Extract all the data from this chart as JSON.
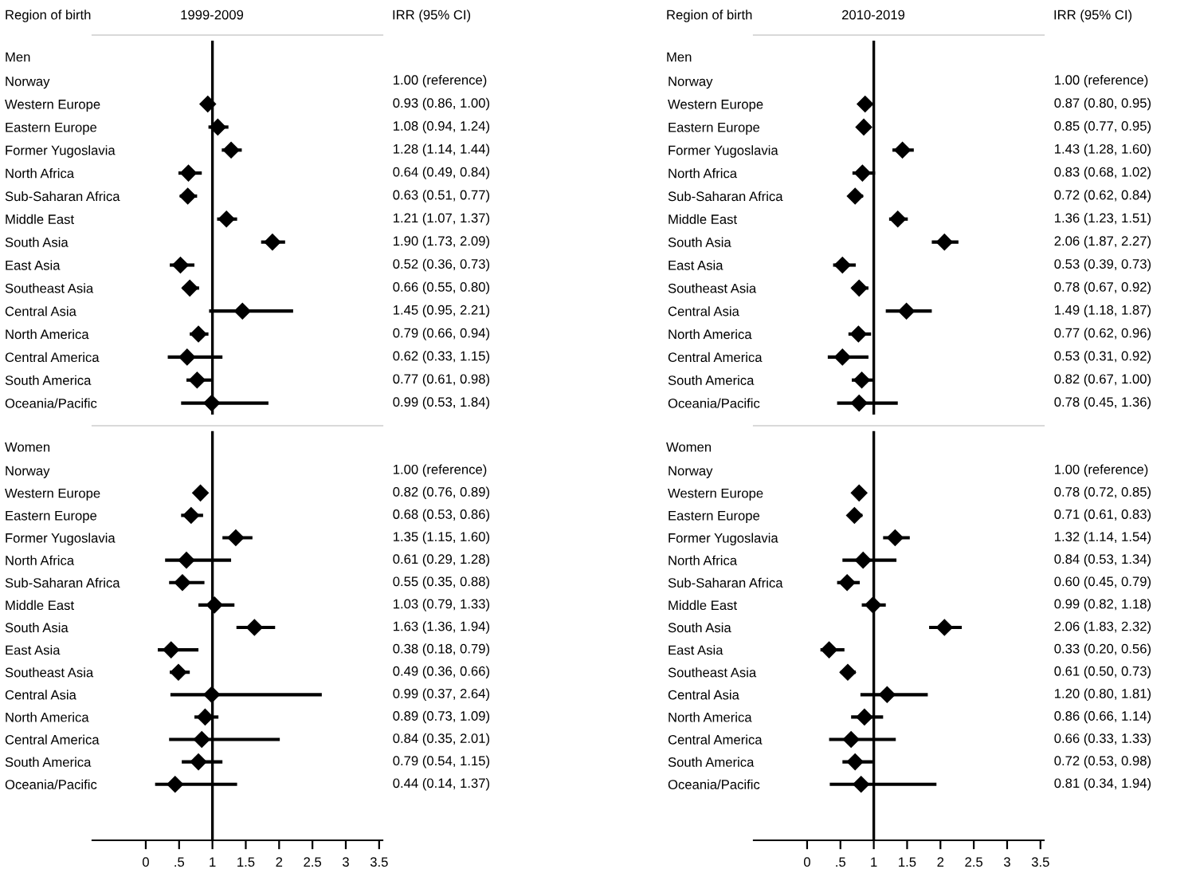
{
  "chart_data": [
    {
      "type": "scatter",
      "orientation": "horizontal",
      "title": "1999-2009",
      "ylabel": "Region of birth",
      "subtitle": "Men",
      "annotations": [
        "IRR (95% CI)"
      ],
      "marker": "diamond",
      "grid": false,
      "tick_labels": "y",
      "xlim": [
        -0.8,
        3.55
      ],
      "categories": [
        "Norway",
        "Western Europe",
        "Eastern Europe",
        "Former Yugoslavia",
        "North Africa",
        "Sub-Saharan Africa",
        "Middle East",
        "South Asia",
        "East Asia",
        "Southeast Asia",
        "Central Asia",
        "North America",
        "Central America",
        "South America",
        "Oceania/Pacific"
      ],
      "series": [
        {
          "color": "#000000",
          "values": [
            null,
            0.93,
            1.08,
            1.28,
            0.64,
            0.63,
            1.21,
            1.9,
            0.52,
            0.66,
            1.45,
            0.79,
            0.62,
            0.77,
            0.99
          ],
          "errors": [
            null,
            [
              0.86,
              1.0
            ],
            [
              0.94,
              1.24
            ],
            [
              1.14,
              1.44
            ],
            [
              0.49,
              0.84
            ],
            [
              0.51,
              0.77
            ],
            [
              1.07,
              1.37
            ],
            [
              1.73,
              2.09
            ],
            [
              0.36,
              0.73
            ],
            [
              0.55,
              0.8
            ],
            [
              0.95,
              2.21
            ],
            [
              0.66,
              0.94
            ],
            [
              0.33,
              1.15
            ],
            [
              0.61,
              0.98
            ],
            [
              0.53,
              1.84
            ]
          ],
          "value_labels": [
            "1.00 (reference)",
            "0.93 (0.86, 1.00)",
            "1.08 (0.94, 1.24)",
            "1.28 (1.14, 1.44)",
            "0.64 (0.49, 0.84)",
            "0.63 (0.51, 0.77)",
            "1.21 (1.07, 1.37)",
            "1.90 (1.73, 2.09)",
            "0.52 (0.36, 0.73)",
            "0.66 (0.55, 0.80)",
            "1.45 (0.95, 2.21)",
            "0.79 (0.66, 0.94)",
            "0.62 (0.33, 1.15)",
            "0.77 (0.61, 0.98)",
            "0.99 (0.53, 1.84)"
          ]
        }
      ],
      "ref_lines": [
        {
          "axis": "x",
          "value": 1,
          "color": "#000000"
        }
      ]
    },
    {
      "type": "scatter",
      "orientation": "horizontal",
      "title": "2010-2019",
      "ylabel": "Region of birth",
      "subtitle": "Men",
      "annotations": [
        "IRR (95% CI)"
      ],
      "marker": "diamond",
      "grid": false,
      "tick_labels": "y",
      "xlim": [
        -0.8,
        3.55
      ],
      "categories": [
        "Norway",
        "Western Europe",
        "Eastern Europe",
        "Former Yugoslavia",
        "North Africa",
        "Sub-Saharan Africa",
        "Middle East",
        "South Asia",
        "East Asia",
        "Southeast Asia",
        "Central Asia",
        "North America",
        "Central America",
        "South America",
        "Oceania/Pacific"
      ],
      "series": [
        {
          "color": "#000000",
          "values": [
            null,
            0.87,
            0.85,
            1.43,
            0.83,
            0.72,
            1.36,
            2.06,
            0.53,
            0.78,
            1.49,
            0.77,
            0.53,
            0.82,
            0.78
          ],
          "errors": [
            null,
            [
              0.8,
              0.95
            ],
            [
              0.77,
              0.95
            ],
            [
              1.28,
              1.6
            ],
            [
              0.68,
              1.02
            ],
            [
              0.62,
              0.84
            ],
            [
              1.23,
              1.51
            ],
            [
              1.87,
              2.27
            ],
            [
              0.39,
              0.73
            ],
            [
              0.67,
              0.92
            ],
            [
              1.18,
              1.87
            ],
            [
              0.62,
              0.96
            ],
            [
              0.31,
              0.92
            ],
            [
              0.67,
              1.0
            ],
            [
              0.45,
              1.36
            ]
          ],
          "value_labels": [
            "1.00 (reference)",
            "0.87 (0.80, 0.95)",
            "0.85 (0.77, 0.95)",
            "1.43 (1.28, 1.60)",
            "0.83 (0.68, 1.02)",
            "0.72 (0.62, 0.84)",
            "1.36 (1.23, 1.51)",
            "2.06 (1.87, 2.27)",
            "0.53 (0.39, 0.73)",
            "0.78 (0.67, 0.92)",
            "1.49 (1.18, 1.87)",
            "0.77 (0.62, 0.96)",
            "0.53 (0.31, 0.92)",
            "0.82 (0.67, 1.00)",
            "0.78 (0.45, 1.36)"
          ]
        }
      ],
      "ref_lines": [
        {
          "axis": "x",
          "value": 1,
          "color": "#000000"
        }
      ]
    },
    {
      "type": "scatter",
      "orientation": "horizontal",
      "subtitle": "Women",
      "marker": "diamond",
      "grid": false,
      "xlim": [
        -0.8,
        3.55
      ],
      "xticks": [
        0,
        {
          "value": 0.5,
          "label": ".5"
        },
        1,
        1.5,
        2,
        2.5,
        3,
        3.5
      ],
      "categories": [
        "Norway",
        "Western Europe",
        "Eastern Europe",
        "Former Yugoslavia",
        "North Africa",
        "Sub-Saharan Africa",
        "Middle East",
        "South Asia",
        "East Asia",
        "Southeast Asia",
        "Central Asia",
        "North America",
        "Central America",
        "South America",
        "Oceania/Pacific"
      ],
      "series": [
        {
          "color": "#000000",
          "values": [
            null,
            0.82,
            0.68,
            1.35,
            0.61,
            0.55,
            1.03,
            1.63,
            0.38,
            0.49,
            0.99,
            0.89,
            0.84,
            0.79,
            0.44
          ],
          "errors": [
            null,
            [
              0.76,
              0.89
            ],
            [
              0.53,
              0.86
            ],
            [
              1.15,
              1.6
            ],
            [
              0.29,
              1.28
            ],
            [
              0.35,
              0.88
            ],
            [
              0.79,
              1.33
            ],
            [
              1.36,
              1.94
            ],
            [
              0.18,
              0.79
            ],
            [
              0.36,
              0.66
            ],
            [
              0.37,
              2.64
            ],
            [
              0.73,
              1.09
            ],
            [
              0.35,
              2.01
            ],
            [
              0.54,
              1.15
            ],
            [
              0.14,
              1.37
            ]
          ],
          "value_labels": [
            "1.00 (reference)",
            "0.82 (0.76, 0.89)",
            "0.68 (0.53, 0.86)",
            "1.35 (1.15, 1.60)",
            "0.61 (0.29, 1.28)",
            "0.55 (0.35, 0.88)",
            "1.03 (0.79, 1.33)",
            "1.63 (1.36, 1.94)",
            "0.38 (0.18, 0.79)",
            "0.49 (0.36, 0.66)",
            "0.99 (0.37, 2.64)",
            "0.89 (0.73, 1.09)",
            "0.84 (0.35, 2.01)",
            "0.79 (0.54, 1.15)",
            "0.44 (0.14, 1.37)"
          ]
        }
      ],
      "ref_lines": [
        {
          "axis": "x",
          "value": 1,
          "color": "#000000"
        }
      ]
    },
    {
      "type": "scatter",
      "orientation": "horizontal",
      "subtitle": "Women",
      "marker": "diamond",
      "grid": false,
      "xlim": [
        -0.8,
        3.55
      ],
      "xticks": [
        0,
        {
          "value": 0.5,
          "label": ".5"
        },
        1,
        1.5,
        2,
        2.5,
        3,
        3.5
      ],
      "categories": [
        "Norway",
        "Western Europe",
        "Eastern Europe",
        "Former Yugoslavia",
        "North Africa",
        "Sub-Saharan Africa",
        "Middle East",
        "South Asia",
        "East Asia",
        "Southeast Asia",
        "Central Asia",
        "North America",
        "Central America",
        "South America",
        "Oceania/Pacific"
      ],
      "series": [
        {
          "color": "#000000",
          "values": [
            null,
            0.78,
            0.71,
            1.32,
            0.84,
            0.6,
            0.99,
            2.06,
            0.33,
            0.61,
            1.2,
            0.86,
            0.66,
            0.72,
            0.81
          ],
          "errors": [
            null,
            [
              0.72,
              0.85
            ],
            [
              0.61,
              0.83
            ],
            [
              1.14,
              1.54
            ],
            [
              0.53,
              1.34
            ],
            [
              0.45,
              0.79
            ],
            [
              0.82,
              1.18
            ],
            [
              1.83,
              2.32
            ],
            [
              0.2,
              0.56
            ],
            [
              0.5,
              0.73
            ],
            [
              0.8,
              1.81
            ],
            [
              0.66,
              1.14
            ],
            [
              0.33,
              1.33
            ],
            [
              0.53,
              0.98
            ],
            [
              0.34,
              1.94
            ]
          ],
          "value_labels": [
            "1.00 (reference)",
            "0.78 (0.72, 0.85)",
            "0.71 (0.61, 0.83)",
            "1.32 (1.14, 1.54)",
            "0.84 (0.53, 1.34)",
            "0.60 (0.45, 0.79)",
            "0.99 (0.82, 1.18)",
            "2.06 (1.83, 2.32)",
            "0.33 (0.20, 0.56)",
            "0.61 (0.50, 0.73)",
            "1.20 (0.80, 1.81)",
            "0.86 (0.66, 1.14)",
            "0.66 (0.33, 1.33)",
            "0.72 (0.53, 0.98)",
            "0.81 (0.34, 1.94)"
          ]
        }
      ],
      "ref_lines": [
        {
          "axis": "x",
          "value": 1,
          "color": "#000000"
        }
      ]
    }
  ]
}
